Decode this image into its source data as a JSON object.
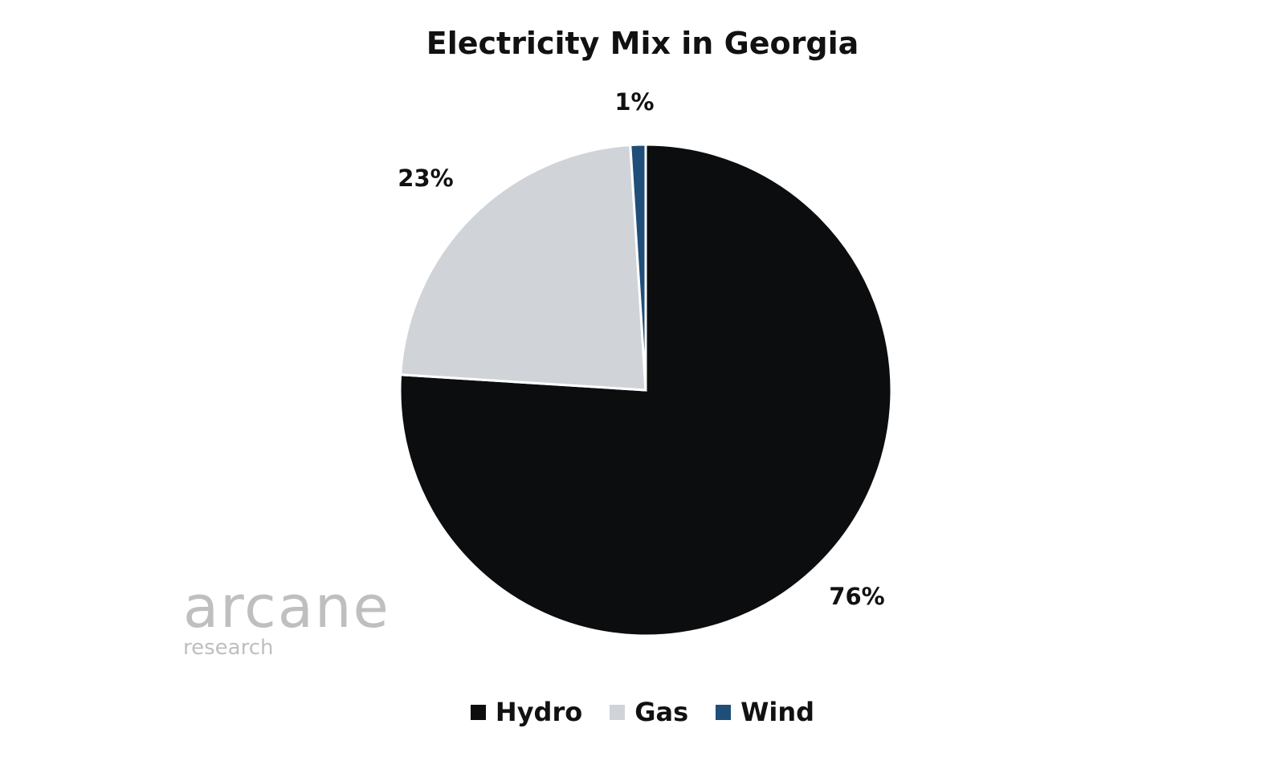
{
  "chart_data": {
    "type": "pie",
    "title": "Electricity Mix in Georgia",
    "categories": [
      "Hydro",
      "Gas",
      "Wind"
    ],
    "values": [
      76,
      23,
      1
    ],
    "data_labels": [
      "76%",
      "23%",
      "1%"
    ],
    "colors": [
      "#0c0d0f",
      "#d0d4d9",
      "#1f4e79"
    ],
    "start": "12 o'clock, clockwise",
    "legend_position": "bottom"
  },
  "watermark": {
    "line1": "arcane",
    "line2": "research"
  }
}
